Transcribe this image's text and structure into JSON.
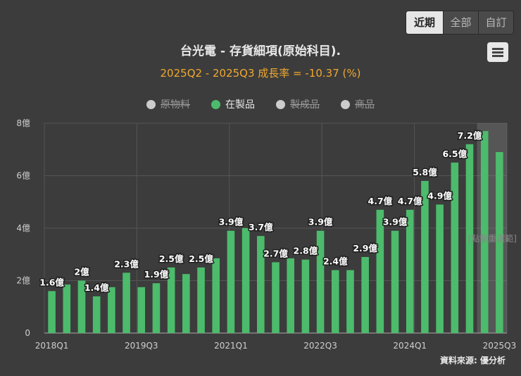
{
  "range_tabs": [
    {
      "label": "近期",
      "active": true
    },
    {
      "label": "全部",
      "active": false
    },
    {
      "label": "自訂",
      "active": false
    }
  ],
  "title": "台光電 - 存貨細項(原始科目).",
  "subtitle": "2025Q2 - 2025Q3 成長率 = -10.37 (%)",
  "legend": [
    {
      "label": "原物料",
      "visible": false,
      "color": "#cccccc"
    },
    {
      "label": "在製品",
      "visible": true,
      "color": "#4cbb6c"
    },
    {
      "label": "製成品",
      "visible": false,
      "color": "#cccccc"
    },
    {
      "label": "商品",
      "visible": false,
      "color": "#cccccc"
    }
  ],
  "zoom_hint": "[點擊重選範]",
  "credit": "資料來源: 優分析",
  "colors": {
    "bar": "#4cbb6c",
    "background": "#3c3c3c",
    "accent": "#f0a830"
  },
  "chart_data": {
    "type": "bar",
    "series_name": "在製品",
    "unit": "億",
    "categories": [
      "2018Q1",
      "2018Q2",
      "2018Q3",
      "2018Q4",
      "2019Q1",
      "2019Q2",
      "2019Q3",
      "2019Q4",
      "2020Q1",
      "2020Q2",
      "2020Q3",
      "2020Q4",
      "2021Q1",
      "2021Q2",
      "2021Q3",
      "2021Q4",
      "2022Q1",
      "2022Q2",
      "2022Q3",
      "2022Q4",
      "2023Q1",
      "2023Q2",
      "2023Q3",
      "2023Q4",
      "2024Q1",
      "2024Q2",
      "2024Q3",
      "2024Q4",
      "2025Q1",
      "2025Q2",
      "2025Q3"
    ],
    "values": [
      1.6,
      1.85,
      2.0,
      1.4,
      1.75,
      2.3,
      1.75,
      1.9,
      2.5,
      2.25,
      2.5,
      2.85,
      3.9,
      4.0,
      3.7,
      2.7,
      2.85,
      2.8,
      3.9,
      2.4,
      2.4,
      2.9,
      4.7,
      3.9,
      4.7,
      5.8,
      4.9,
      6.5,
      7.2,
      7.7,
      6.9
    ],
    "data_labels": [
      {
        "index": 0,
        "text": "1.6億"
      },
      {
        "index": 2,
        "text": "2億"
      },
      {
        "index": 3,
        "text": "1.4億"
      },
      {
        "index": 5,
        "text": "2.3億"
      },
      {
        "index": 7,
        "text": "1.9億"
      },
      {
        "index": 8,
        "text": "2.5億"
      },
      {
        "index": 10,
        "text": "2.5億"
      },
      {
        "index": 12,
        "text": "3.9億"
      },
      {
        "index": 14,
        "text": "3.7億"
      },
      {
        "index": 15,
        "text": "2.7億"
      },
      {
        "index": 17,
        "text": "2.8億"
      },
      {
        "index": 18,
        "text": "3.9億"
      },
      {
        "index": 19,
        "text": "2.4億"
      },
      {
        "index": 21,
        "text": "2.9億"
      },
      {
        "index": 22,
        "text": "4.7億"
      },
      {
        "index": 23,
        "text": "3.9億"
      },
      {
        "index": 24,
        "text": "4.7億"
      },
      {
        "index": 25,
        "text": "5.8億"
      },
      {
        "index": 26,
        "text": "4.9億"
      },
      {
        "index": 27,
        "text": "6.5億"
      },
      {
        "index": 28,
        "text": "7.2億"
      }
    ],
    "x_tick_labels": [
      {
        "index": 0,
        "text": "2018Q1"
      },
      {
        "index": 6,
        "text": "2019Q3"
      },
      {
        "index": 12,
        "text": "2021Q1"
      },
      {
        "index": 18,
        "text": "2022Q3"
      },
      {
        "index": 24,
        "text": "2024Q1"
      },
      {
        "index": 30,
        "text": "2025Q3"
      }
    ],
    "y_ticks": [
      {
        "value": 0,
        "text": "0"
      },
      {
        "value": 2,
        "text": "2億"
      },
      {
        "value": 4,
        "text": "4億"
      },
      {
        "value": 6,
        "text": "6億"
      },
      {
        "value": 8,
        "text": "8億"
      }
    ],
    "ylim": [
      0,
      8
    ],
    "highlight_range": [
      29,
      30
    ]
  }
}
